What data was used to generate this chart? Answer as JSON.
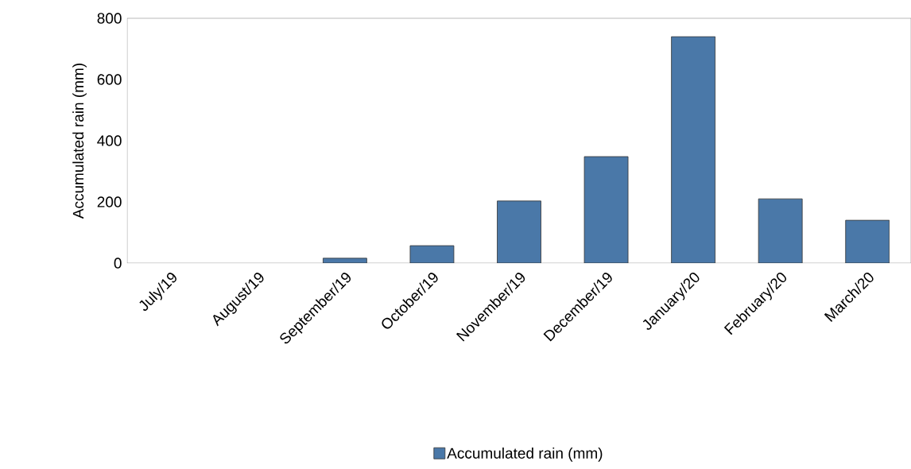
{
  "chart_data": {
    "type": "bar",
    "ylabel": "Accumulated rain (mm)",
    "categories": [
      "July/19",
      "August/19",
      "September/19",
      "October/19",
      "November/19",
      "December/19",
      "January/20",
      "February/20",
      "March/20"
    ],
    "series": [
      {
        "name": "Accumulated rain (mm)",
        "color": "#4a78a8",
        "values": [
          null,
          null,
          16,
          57,
          203,
          348,
          740,
          210,
          140
        ]
      }
    ],
    "ylim": [
      0,
      800
    ],
    "yticks": [
      0,
      200,
      400,
      600,
      800
    ],
    "grid": false,
    "legend": "bottom"
  }
}
